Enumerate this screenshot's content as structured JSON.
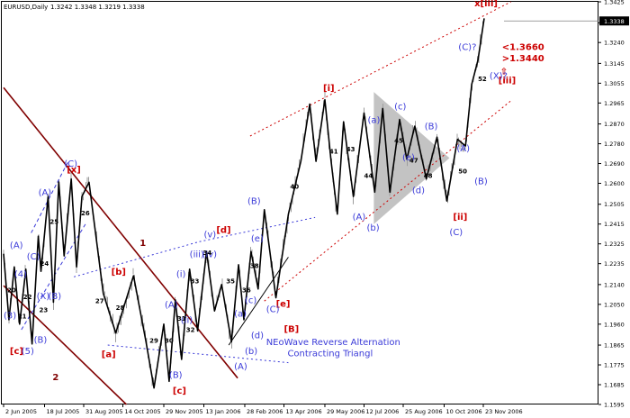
{
  "header": {
    "symbol_text": "EURUSD,Daily",
    "ohlc_text": "1.3242 1.3348 1.3219 1.3338"
  },
  "chart_data": {
    "type": "candlestick-annotated",
    "title": "EURUSD,Daily",
    "subtitle": "1.3242 1.3348 1.3219 1.3338",
    "xlabel": "",
    "ylabel": "",
    "grid": false,
    "current_price_label": "1.3338",
    "yticks": [
      "1.3425",
      "1.3330",
      "1.3240",
      "1.3145",
      "1.3055",
      "1.2965",
      "1.2870",
      "1.2780",
      "1.2690",
      "1.2600",
      "1.2505",
      "1.2415",
      "1.2325",
      "1.2235",
      "1.2140",
      "1.2050",
      "1.1960",
      "1.1865",
      "1.1775",
      "1.1685",
      "1.1595"
    ],
    "ylim": [
      1.1595,
      1.3425
    ],
    "xticks": [
      "2 Jun 2005",
      "18 Jul 2005",
      "31 Aug 2005",
      "14 Oct 2005",
      "29 Nov 2005",
      "13 Jan 2006",
      "28 Feb 2006",
      "13 Apr 2006",
      "29 May 2006",
      "12 Jul 2006",
      "25 Aug 2006",
      "10 Oct 2006",
      "23 Nov 2006"
    ],
    "colors": {
      "bars": "#9c9c9c",
      "wave_line": "#000000",
      "red_annotation": "#cc0000",
      "blue_annotation": "#3a3ad8",
      "downtrend_channel": "#800000",
      "uptrend_channel": "#e03030",
      "triangle_fill": "#b8b8b8"
    },
    "wave_path": [
      [
        "2 Jun 2005",
        1.228
      ],
      [
        "8 Jun 2005",
        1.198
      ],
      [
        "14 Jun 2005",
        1.222
      ],
      [
        "20 Jun 2005",
        1.196
      ],
      [
        "27 Jun 2005",
        1.221
      ],
      [
        "4 Jul 2005",
        1.187
      ],
      [
        "11 Jul 2005",
        1.236
      ],
      [
        "14 Jul 2005",
        1.22
      ],
      [
        "22 Jul 2005",
        1.254
      ],
      [
        "28 Jul 2005",
        1.206
      ],
      [
        "3 Aug 2005",
        1.2606
      ],
      [
        "9 Aug 2005",
        1.227
      ],
      [
        "17 Aug 2005",
        1.262
      ],
      [
        "23 Aug 2005",
        1.222
      ],
      [
        "29 Aug 2005",
        1.254
      ],
      [
        "6 Sep 2005",
        1.2605
      ],
      [
        "22 Sep 2005",
        1.21
      ],
      [
        "6 Oct 2005",
        1.192
      ],
      [
        "26 Oct 2005",
        1.218
      ],
      [
        "9 Nov 2005",
        1.188
      ],
      [
        "18 Nov 2005",
        1.167
      ],
      [
        "29 Nov 2005",
        1.196
      ],
      [
        "5 Dec 2005",
        1.17
      ],
      [
        "12 Dec 2005",
        1.207
      ],
      [
        "19 Dec 2005",
        1.18
      ],
      [
        "28 Dec 2005",
        1.221
      ],
      [
        "6 Jan 2006",
        1.193
      ],
      [
        "16 Jan 2006",
        1.229
      ],
      [
        "25 Jan 2006",
        1.202
      ],
      [
        "2 Feb 2006",
        1.214
      ],
      [
        "13 Feb 2006",
        1.188
      ],
      [
        "21 Feb 2006",
        1.223
      ],
      [
        "27 Feb 2006",
        1.198
      ],
      [
        "7 Mar 2006",
        1.229
      ],
      [
        "15 Mar 2006",
        1.212
      ],
      [
        "22 Mar 2006",
        1.248
      ],
      [
        "4 Apr 2006",
        1.208
      ],
      [
        "18 Apr 2006",
        1.246
      ],
      [
        "2 May 2006",
        1.27
      ],
      [
        "12 May 2006",
        1.296
      ],
      [
        "19 May 2006",
        1.27
      ],
      [
        "29 May 2006",
        1.298
      ],
      [
        "5 Jun 2006",
        1.27
      ],
      [
        "12 Jun 2006",
        1.246
      ],
      [
        "19 Jun 2006",
        1.288
      ],
      [
        "30 Jun 2006",
        1.254
      ],
      [
        "12 Jul 2006",
        1.292
      ],
      [
        "24 Jul 2006",
        1.256
      ],
      [
        "2 Aug 2006",
        1.294
      ],
      [
        "10 Aug 2006",
        1.256
      ],
      [
        "21 Aug 2006",
        1.289
      ],
      [
        "29 Aug 2006",
        1.271
      ],
      [
        "7 Sep 2006",
        1.286
      ],
      [
        "20 Sep 2006",
        1.262
      ],
      [
        "2 Oct 2006",
        1.281
      ],
      [
        "13 Oct 2006",
        1.252
      ],
      [
        "25 Oct 2006",
        1.28
      ],
      [
        "3 Nov 2006",
        1.277
      ],
      [
        "10 Nov 2006",
        1.305
      ],
      [
        "17 Nov 2006",
        1.316
      ],
      [
        "24 Nov 2006",
        1.335
      ]
    ],
    "labels": [
      {
        "text": "x[iii]",
        "date": "13 Nov 2006",
        "y": 1.3405,
        "color": "red"
      },
      {
        "text": "[i]",
        "date": "27 May 2006",
        "y": 1.302,
        "color": "red"
      },
      {
        "text": "[ii]",
        "date": "20 Oct 2006",
        "y": 1.2435,
        "color": "red"
      },
      {
        "text": "[iii]",
        "date": "10 Dec 2006",
        "y": 1.3055,
        "color": "red"
      },
      {
        "text": "[x]",
        "date": "12 Aug 2005",
        "y": 1.265,
        "color": "red"
      },
      {
        "text": "[b]",
        "date": "1 Oct 2005",
        "y": 1.2185,
        "color": "red"
      },
      {
        "text": "[a]",
        "date": "20 Sep 2005",
        "y": 1.181,
        "color": "red"
      },
      {
        "text": "[c]",
        "date": "9 Dec 2005",
        "y": 1.1645,
        "color": "red"
      },
      {
        "text": "[d]",
        "date": "27 Jan 2006",
        "y": 1.2375,
        "color": "red"
      },
      {
        "text": "[e]",
        "date": "4 Apr 2006",
        "y": 1.204,
        "color": "red"
      },
      {
        "text": "[B]",
        "date": "13 Apr 2006",
        "y": 1.1925,
        "color": "red"
      },
      {
        "text": "[c]",
        "date": "9 Jun 2005",
        "y": 1.1825,
        "color": "red"
      },
      {
        "text": "<1.3660",
        "date": "14 Dec 2006",
        "y": 1.3205,
        "color": "red"
      },
      {
        "text": ">1.3440",
        "date": "14 Dec 2006",
        "y": 1.3155,
        "color": "red"
      },
      {
        "text": "⇧",
        "date": "12 Dec 2006",
        "y": 1.3095,
        "color": "red"
      },
      {
        "text": "(C)?",
        "date": "26 Oct 2006",
        "y": 1.3205,
        "color": "blue"
      },
      {
        "text": "(X)?",
        "date": "30 Nov 2006",
        "y": 1.3075,
        "color": "blue"
      },
      {
        "text": "(B)",
        "date": "18 Sep 2006",
        "y": 1.2845,
        "color": "blue"
      },
      {
        "text": "(A)",
        "date": "24 Oct 2006",
        "y": 1.2745,
        "color": "blue"
      },
      {
        "text": "(B)",
        "date": "13 Nov 2006",
        "y": 1.2595,
        "color": "blue"
      },
      {
        "text": "(C)",
        "date": "16 Oct 2006",
        "y": 1.2365,
        "color": "blue"
      },
      {
        "text": "(a)",
        "date": "16 Jul 2006",
        "y": 1.2875,
        "color": "blue"
      },
      {
        "text": "(c)",
        "date": "15 Aug 2006",
        "y": 1.2935,
        "color": "blue"
      },
      {
        "text": "(e)",
        "date": "24 Aug 2006",
        "y": 1.2705,
        "color": "blue"
      },
      {
        "text": "(b)",
        "date": "15 Jul 2006",
        "y": 1.2385,
        "color": "blue"
      },
      {
        "text": "(d)",
        "date": "4 Sep 2006",
        "y": 1.2555,
        "color": "blue"
      },
      {
        "text": "(A)",
        "date": "29 Jun 2006",
        "y": 1.2435,
        "color": "blue"
      },
      {
        "text": "(C)",
        "date": "9 Aug 2005",
        "y": 1.2675,
        "color": "blue"
      },
      {
        "text": "(A)",
        "date": "11 Jul 2005",
        "y": 1.2545,
        "color": "blue"
      },
      {
        "text": "(A)",
        "date": "9 Jun 2005",
        "y": 1.2305,
        "color": "blue"
      },
      {
        "text": "(C)",
        "date": "28 Jun 2005",
        "y": 1.2255,
        "color": "blue"
      },
      {
        "text": "(4)",
        "date": "14 Jun 2005",
        "y": 1.2175,
        "color": "blue"
      },
      {
        "text": "(X)",
        "date": "9 Jul 2005",
        "y": 1.2075,
        "color": "blue"
      },
      {
        "text": "(B)",
        "date": "22 Jul 2005",
        "y": 1.2075,
        "color": "blue"
      },
      {
        "text": "(3)",
        "date": "2 Jun 2005",
        "y": 1.1985,
        "color": "blue"
      },
      {
        "text": "(B)",
        "date": "6 Jul 2005",
        "y": 1.1875,
        "color": "blue"
      },
      {
        "text": "(5)",
        "date": "22 Jun 2005",
        "y": 1.1825,
        "color": "blue"
      },
      {
        "text": "(B)",
        "date": "3 Mar 2006",
        "y": 1.2505,
        "color": "blue"
      },
      {
        "text": "(e)",
        "date": "7 Mar 2006",
        "y": 1.2335,
        "color": "blue"
      },
      {
        "text": "(v)",
        "date": "13 Jan 2006",
        "y": 1.2355,
        "color": "blue"
      },
      {
        "text": "(iii)",
        "date": "28 Dec 2005",
        "y": 1.2265,
        "color": "blue"
      },
      {
        "text": "(iv)",
        "date": "11 Jan 2006",
        "y": 1.2265,
        "color": "blue"
      },
      {
        "text": "(i)",
        "date": "13 Dec 2005",
        "y": 1.2175,
        "color": "blue"
      },
      {
        "text": "(A)",
        "date": "30 Nov 2005",
        "y": 1.2035,
        "color": "blue"
      },
      {
        "text": "(ii)",
        "date": "18 Dec 2005",
        "y": 1.1965,
        "color": "blue"
      },
      {
        "text": "(c)",
        "date": "28 Feb 2006",
        "y": 1.2055,
        "color": "blue"
      },
      {
        "text": "(a)",
        "date": "16 Feb 2006",
        "y": 1.1995,
        "color": "blue"
      },
      {
        "text": "(d)",
        "date": "7 Mar 2006",
        "y": 1.1895,
        "color": "blue"
      },
      {
        "text": "(C)",
        "date": "24 Mar 2006",
        "y": 1.2015,
        "color": "blue"
      },
      {
        "text": "(B)",
        "date": "5 Dec 2005",
        "y": 1.1715,
        "color": "blue"
      },
      {
        "text": "(b)",
        "date": "28 Feb 2006",
        "y": 1.1825,
        "color": "blue"
      },
      {
        "text": "(A)",
        "date": "16 Feb 2006",
        "y": 1.1755,
        "color": "blue"
      },
      {
        "text": "NEoWave Reverse Alternation",
        "date": "24 Mar 2006",
        "y": 1.1865,
        "color": "blue"
      },
      {
        "text": "Contracting Triangl",
        "date": "17 Apr 2006",
        "y": 1.1815,
        "color": "blue"
      },
      {
        "text": "1",
        "date": "2 Nov 2005",
        "y": 1.2315,
        "color": "maroon"
      },
      {
        "text": "2",
        "date": "27 Jul 2005",
        "y": 1.1705,
        "color": "maroon"
      }
    ],
    "counts": [
      {
        "text": "20",
        "date": "6 Jun 2005",
        "y": 1.2105
      },
      {
        "text": "21",
        "date": "18 Jun 2005",
        "y": 1.1985
      },
      {
        "text": "22",
        "date": "24 Jun 2005",
        "y": 1.2075
      },
      {
        "text": "23",
        "date": "12 Jul 2005",
        "y": 1.2015
      },
      {
        "text": "24",
        "date": "13 Jul 2005",
        "y": 1.2225
      },
      {
        "text": "25",
        "date": "24 Jul 2005",
        "y": 1.2415
      },
      {
        "text": "26",
        "date": "28 Aug 2005",
        "y": 1.2455
      },
      {
        "text": "27",
        "date": "13 Sep 2005",
        "y": 1.2055
      },
      {
        "text": "28",
        "date": "6 Oct 2005",
        "y": 1.2025
      },
      {
        "text": "29",
        "date": "13 Nov 2005",
        "y": 1.1875
      },
      {
        "text": "30",
        "date": "30 Nov 2005",
        "y": 1.1875
      },
      {
        "text": "31",
        "date": "14 Dec 2005",
        "y": 1.1975
      },
      {
        "text": "32",
        "date": "24 Dec 2005",
        "y": 1.1925
      },
      {
        "text": "33",
        "date": "29 Dec 2005",
        "y": 1.2145
      },
      {
        "text": "34",
        "date": "12 Jan 2006",
        "y": 1.2275
      },
      {
        "text": "35",
        "date": "7 Feb 2006",
        "y": 1.2145
      },
      {
        "text": "36",
        "date": "25 Feb 2006",
        "y": 1.2105
      },
      {
        "text": "38",
        "date": "6 Mar 2006",
        "y": 1.2215
      },
      {
        "text": "40",
        "date": "20 Apr 2006",
        "y": 1.2575
      },
      {
        "text": "41",
        "date": "3 Jun 2006",
        "y": 1.2735
      },
      {
        "text": "43",
        "date": "22 Jun 2006",
        "y": 1.2745
      },
      {
        "text": "44",
        "date": "12 Jul 2006",
        "y": 1.2625
      },
      {
        "text": "45",
        "date": "15 Aug 2006",
        "y": 1.2785
      },
      {
        "text": "47",
        "date": "1 Sep 2006",
        "y": 1.2695
      },
      {
        "text": "48",
        "date": "17 Sep 2006",
        "y": 1.2625
      },
      {
        "text": "50",
        "date": "26 Oct 2006",
        "y": 1.2645
      },
      {
        "text": "52",
        "date": "17 Nov 2006",
        "y": 1.3065
      }
    ],
    "channels": [
      {
        "name": "downtrend-upper",
        "color": "maroon",
        "style": "solid",
        "from": [
          "2 Jun 2005",
          1.3035
        ],
        "to": [
          "20 Feb 2006",
          1.1715
        ]
      },
      {
        "name": "downtrend-lower",
        "color": "maroon",
        "style": "solid",
        "from": [
          "2 Jun 2005",
          1.2135
        ],
        "to": [
          "18 Oct 2005",
          1.1595
        ]
      },
      {
        "name": "uptrend-upper",
        "color": "red",
        "style": "dotted",
        "from": [
          "6 Mar 2006",
          1.2815
        ],
        "to": [
          "24 Dec 2006",
          1.3425
        ]
      },
      {
        "name": "uptrend-lower",
        "color": "red",
        "style": "dotted",
        "from": [
          "22 Mar 2006",
          1.2065
        ],
        "to": [
          "24 Dec 2006",
          1.2975
        ]
      },
      {
        "name": "triangle-upper",
        "color": "blue",
        "style": "dotted",
        "from": [
          "20 Aug 2005",
          1.2175
        ],
        "to": [
          "8 Jan 2006",
          1.2335
        ]
      },
      {
        "name": "triangle-upper-ext",
        "color": "blue",
        "style": "dotted",
        "from": [
          "8 Jan 2006",
          1.2335
        ],
        "to": [
          "18 May 2006",
          1.2445
        ]
      },
      {
        "name": "triangle-lower",
        "color": "blue",
        "style": "dotted",
        "from": [
          "27 Sep 2005",
          1.1865
        ],
        "to": [
          "18 Apr 2006",
          1.1785
        ]
      },
      {
        "name": "wave-e-trend",
        "color": "black",
        "style": "solid",
        "from": [
          "10 Feb 2006",
          1.1865
        ],
        "to": [
          "18 Apr 2006",
          1.2265
        ]
      },
      {
        "name": "leg-up-1",
        "color": "blue",
        "style": "dashed",
        "from": [
          "22 Jun 2005",
          1.1935
        ],
        "to": [
          "2 Sep 2005",
          1.2415
        ]
      },
      {
        "name": "leg-up-2",
        "color": "blue",
        "style": "dashed",
        "from": [
          "3 Jul 2005",
          1.2375
        ],
        "to": [
          "13 Aug 2005",
          1.2695
        ]
      }
    ],
    "triangle": {
      "color": "#b8b8b8",
      "points": [
        [
          "23 Jul 2006",
          1.3015
        ],
        [
          "16 Oct 2006",
          1.2715
        ],
        [
          "23 Jul 2006",
          1.2415
        ]
      ]
    }
  }
}
